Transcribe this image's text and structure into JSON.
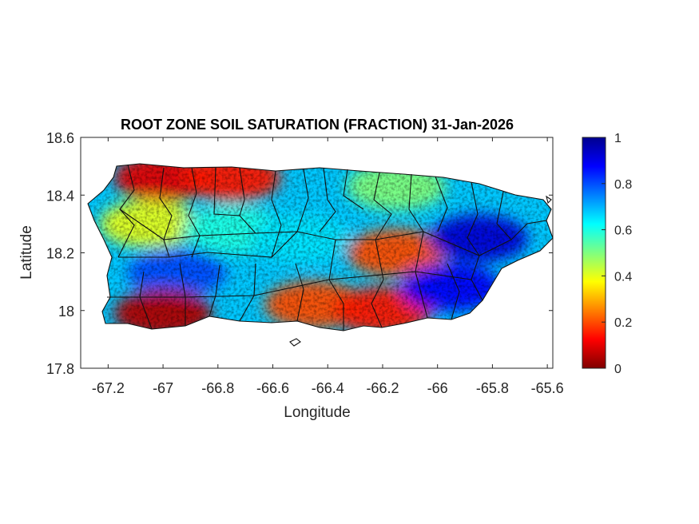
{
  "figure": {
    "title": "ROOT ZONE SOIL SATURATION (FRACTION) 31-Jan-2026",
    "xlabel": "Longitude",
    "ylabel": "Latitude"
  },
  "chart_data": {
    "type": "heatmap",
    "title": "ROOT ZONE SOIL SATURATION (FRACTION) 31-Jan-2026",
    "xlabel": "Longitude",
    "ylabel": "Latitude",
    "xlim": [
      -67.3,
      -65.58
    ],
    "ylim": [
      17.8,
      18.6
    ],
    "x_ticks": [
      -67.2,
      -67,
      -66.8,
      -66.6,
      -66.4,
      -66.2,
      -66,
      -65.8,
      -65.6
    ],
    "x_tick_labels": [
      "-67.2",
      "-67",
      "-66.8",
      "-66.6",
      "-66.4",
      "-66.2",
      "-66",
      "-65.8",
      "-65.6"
    ],
    "y_ticks": [
      17.8,
      18,
      18.2,
      18.4,
      18.6
    ],
    "y_tick_labels": [
      "17.8",
      "18",
      "18.2",
      "18.4",
      "18.6"
    ],
    "grid": false,
    "colorbar": {
      "colormap": "jet",
      "clim": [
        0,
        1
      ],
      "ticks": [
        0,
        0.2,
        0.4,
        0.6,
        0.8,
        1
      ],
      "tick_labels": [
        "0",
        "0.2",
        "0.4",
        "0.6",
        "0.8",
        "1"
      ],
      "placement": "right"
    },
    "regions": [
      {
        "area": "north-west coast",
        "lon": -67.0,
        "lat": 18.46,
        "value": 0.1
      },
      {
        "area": "north-central coast",
        "lon": -66.75,
        "lat": 18.46,
        "value": 0.15
      },
      {
        "area": "western interior",
        "lon": -67.05,
        "lat": 18.3,
        "value": 0.4
      },
      {
        "area": "west-central interior",
        "lon": -66.75,
        "lat": 18.28,
        "value": 0.6
      },
      {
        "area": "central interior",
        "lon": -66.5,
        "lat": 18.25,
        "value": 0.65
      },
      {
        "area": "south-west band",
        "lon": -66.95,
        "lat": 18.13,
        "value": 0.8
      },
      {
        "area": "south-west coast",
        "lon": -67.0,
        "lat": 17.99,
        "value": 0.05
      },
      {
        "area": "south-central coast",
        "lon": -66.45,
        "lat": 18.02,
        "value": 0.2
      },
      {
        "area": "south-east coast",
        "lon": -66.2,
        "lat": 18.0,
        "value": 0.15
      },
      {
        "area": "east-central interior",
        "lon": -66.15,
        "lat": 18.2,
        "value": 0.2
      },
      {
        "area": "north-east coast",
        "lon": -66.15,
        "lat": 18.43,
        "value": 0.5
      },
      {
        "area": "eastern region",
        "lon": -65.85,
        "lat": 18.25,
        "value": 0.92
      },
      {
        "area": "south-east corner",
        "lon": -65.95,
        "lat": 18.08,
        "value": 0.88
      }
    ]
  }
}
